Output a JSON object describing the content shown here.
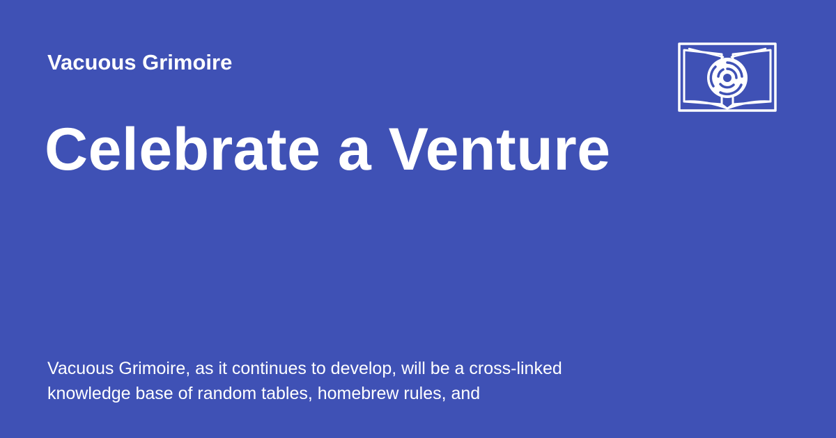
{
  "header": {
    "site_name": "Vacuous Grimoire",
    "logo_icon": "open-book-vortex-icon"
  },
  "main": {
    "title": "Celebrate a Venture",
    "description": "Vacuous Grimoire, as it continues to develop, will be a cross-linked knowledge base of random tables, homebrew rules, and"
  },
  "colors": {
    "background": "#3f51b5",
    "text": "#ffffff"
  }
}
